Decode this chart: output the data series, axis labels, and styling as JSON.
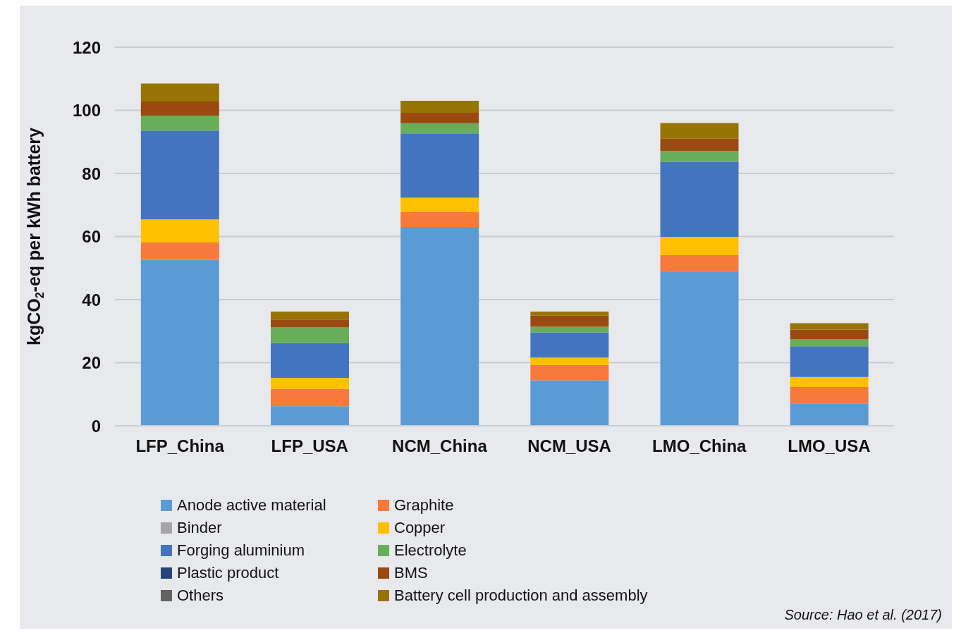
{
  "chart_data": {
    "type": "bar",
    "stacked": true,
    "ylabel": "kgCO$_{2}$-eq per kWh battery",
    "categories": [
      "LFP_China",
      "LFP_USA",
      "NCM_China",
      "NCM_USA",
      "LMO_China",
      "LMO_USA"
    ],
    "ylim": [
      0,
      120
    ],
    "yticks": [
      0,
      20,
      40,
      60,
      80,
      100,
      120
    ],
    "grid": "y",
    "legend": "bottom",
    "series": [
      {
        "name": "Anode active material",
        "color": "#5b9bd5",
        "values": [
          52.6,
          6.2,
          63.0,
          14.4,
          49.0,
          7.1
        ]
      },
      {
        "name": "Graphite",
        "color": "#f8793c",
        "values": [
          5.5,
          5.5,
          4.7,
          4.8,
          5.1,
          5.2
        ]
      },
      {
        "name": "Binder",
        "color": "#a5a5a5",
        "values": [
          0,
          0,
          0,
          0,
          0,
          0
        ]
      },
      {
        "name": "Copper",
        "color": "#ffc000",
        "values": [
          7.3,
          3.5,
          4.6,
          2.4,
          5.8,
          3.2
        ]
      },
      {
        "name": "Forging aluminium",
        "color": "#4374bf",
        "values": [
          28.2,
          11.0,
          20.4,
          8.0,
          23.8,
          9.7
        ]
      },
      {
        "name": "Electrolyte",
        "color": "#68ad5a",
        "values": [
          4.7,
          5.0,
          3.2,
          1.8,
          3.4,
          2.3
        ]
      },
      {
        "name": "Plastic product",
        "color": "#264478",
        "values": [
          0,
          0,
          0,
          0,
          0,
          0
        ]
      },
      {
        "name": "BMS",
        "color": "#9a4a10",
        "values": [
          4.5,
          2.5,
          3.3,
          3.5,
          3.9,
          3.0
        ]
      },
      {
        "name": "Others",
        "color": "#636363",
        "values": [
          0,
          0,
          0,
          0,
          0,
          0
        ]
      },
      {
        "name": "Battery cell production and assembly",
        "color": "#977404",
        "values": [
          5.7,
          2.5,
          3.8,
          1.3,
          5.0,
          2.0
        ]
      }
    ],
    "annotations": [
      "Source: Hao et al. (2017)"
    ]
  }
}
